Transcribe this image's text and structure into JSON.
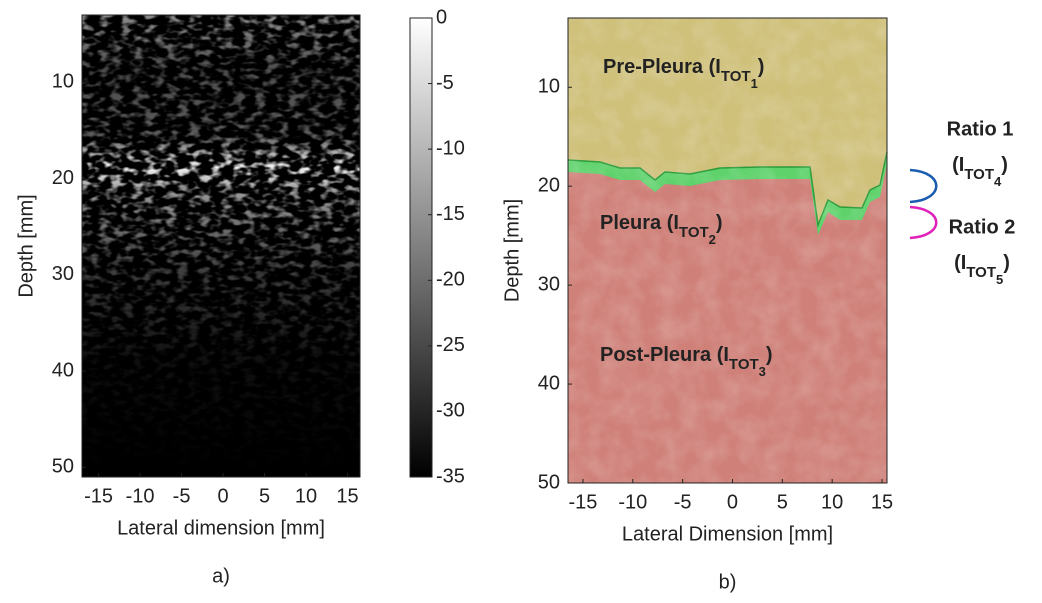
{
  "chart_data": [
    {
      "type": "image",
      "caption": "a)",
      "xlabel": "Lateral dimension [mm]",
      "ylabel": "Depth [mm]",
      "xlim": [
        -17,
        16.5
      ],
      "ylim": [
        3,
        51
      ],
      "xticks": [
        -15,
        -10,
        -5,
        0,
        5,
        10,
        15
      ],
      "yticks": [
        10,
        20,
        30,
        40,
        50
      ],
      "colorbar": {
        "lim": [
          -35,
          0
        ],
        "ticks": [
          0,
          -5,
          -10,
          -15,
          -20,
          -25,
          -30,
          -35
        ]
      }
    },
    {
      "type": "segmentation",
      "caption": "b)",
      "xlabel": "Lateral Dimension [mm]",
      "ylabel": "Depth [mm]",
      "xlim": [
        -16.5,
        15.5
      ],
      "ylim": [
        3,
        50
      ],
      "xticks": [
        -15,
        -10,
        -5,
        0,
        5,
        10,
        15
      ],
      "yticks": [
        10,
        20,
        30,
        40,
        50
      ],
      "regions": [
        {
          "name": "Pre-Pleura (I",
          "sub": "TOT",
          "index": "1",
          "close": ")",
          "color": "#e2601b"
        },
        {
          "name": "Pleura (I",
          "sub": "TOT",
          "index": "2",
          "close": ")",
          "color": "#3fc24a"
        },
        {
          "name": "Post-Pleura (I",
          "sub": "TOT",
          "index": "3",
          "close": ")",
          "color": "#a0142c"
        }
      ],
      "ratios": [
        {
          "name": "Ratio 1",
          "open": "(I",
          "sub": "TOT",
          "index": "4",
          "close": ")",
          "color": "#1a5cb0"
        },
        {
          "name": "Ratio 2",
          "open": "(I",
          "sub": "TOT",
          "index": "5",
          "close": ")",
          "color": "#e020b8"
        }
      ]
    }
  ]
}
